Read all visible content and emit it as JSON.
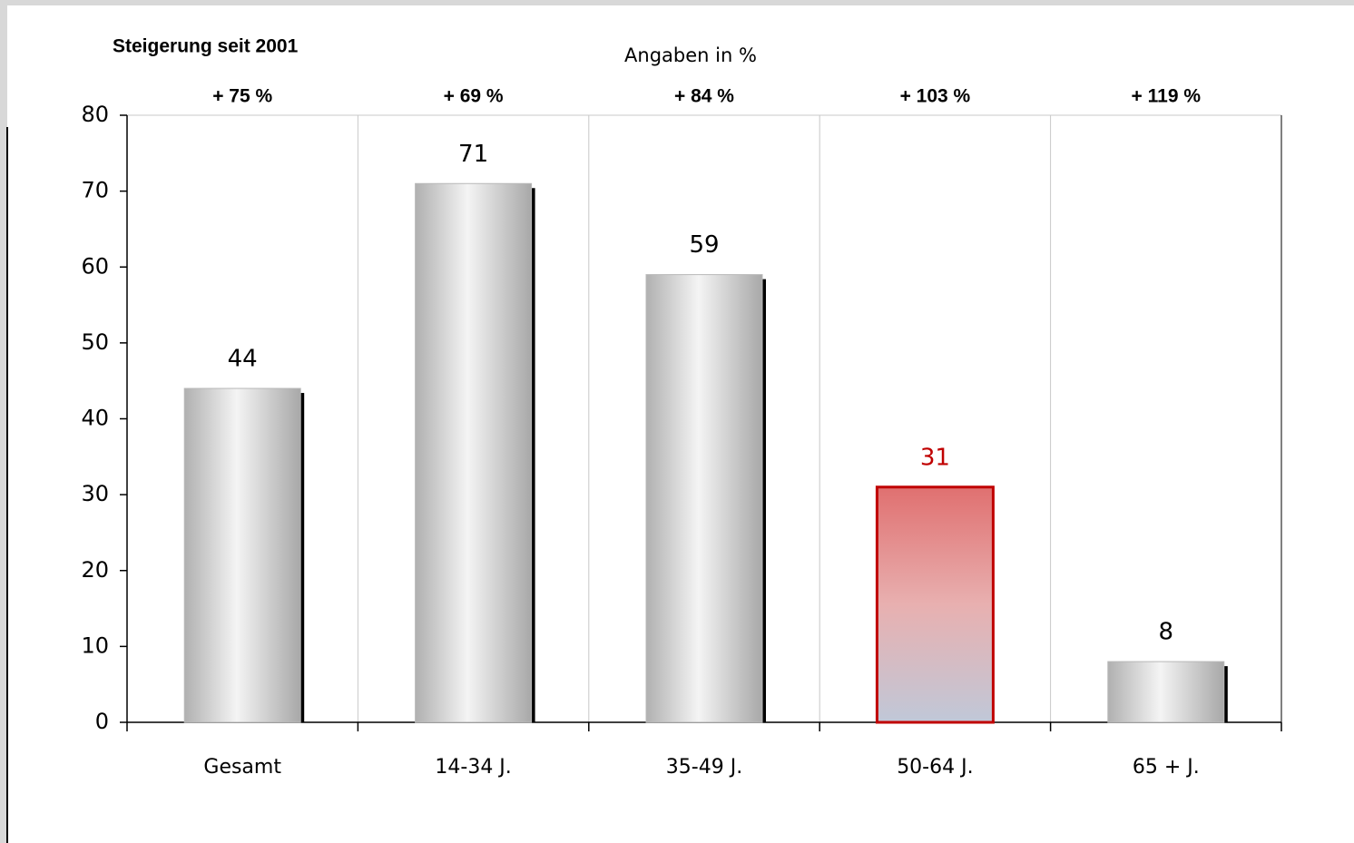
{
  "chart_data": {
    "type": "bar",
    "title": "Steigerung seit 2001",
    "subtitle": "Angaben in %",
    "categories": [
      "Gesamt",
      "14-34 J.",
      "35-49 J.",
      "50-64 J.",
      "65 + J."
    ],
    "values": [
      44,
      71,
      59,
      31,
      8
    ],
    "colors": [
      "#c8c8c8",
      "#c8c8c8",
      "#c8c8c8",
      "#e07070",
      "#c8c8c8"
    ],
    "label_colors": [
      "#000000",
      "#000000",
      "#000000",
      "#c00000",
      "#000000"
    ],
    "annotations": [
      "+ 75 %",
      "+ 69 %",
      "+ 84 %",
      "+ 103 %",
      "+ 119 %"
    ],
    "ylim": [
      0,
      80
    ],
    "yticks": [
      0,
      10,
      20,
      30,
      40,
      50,
      60,
      70,
      80
    ],
    "grid": true
  }
}
